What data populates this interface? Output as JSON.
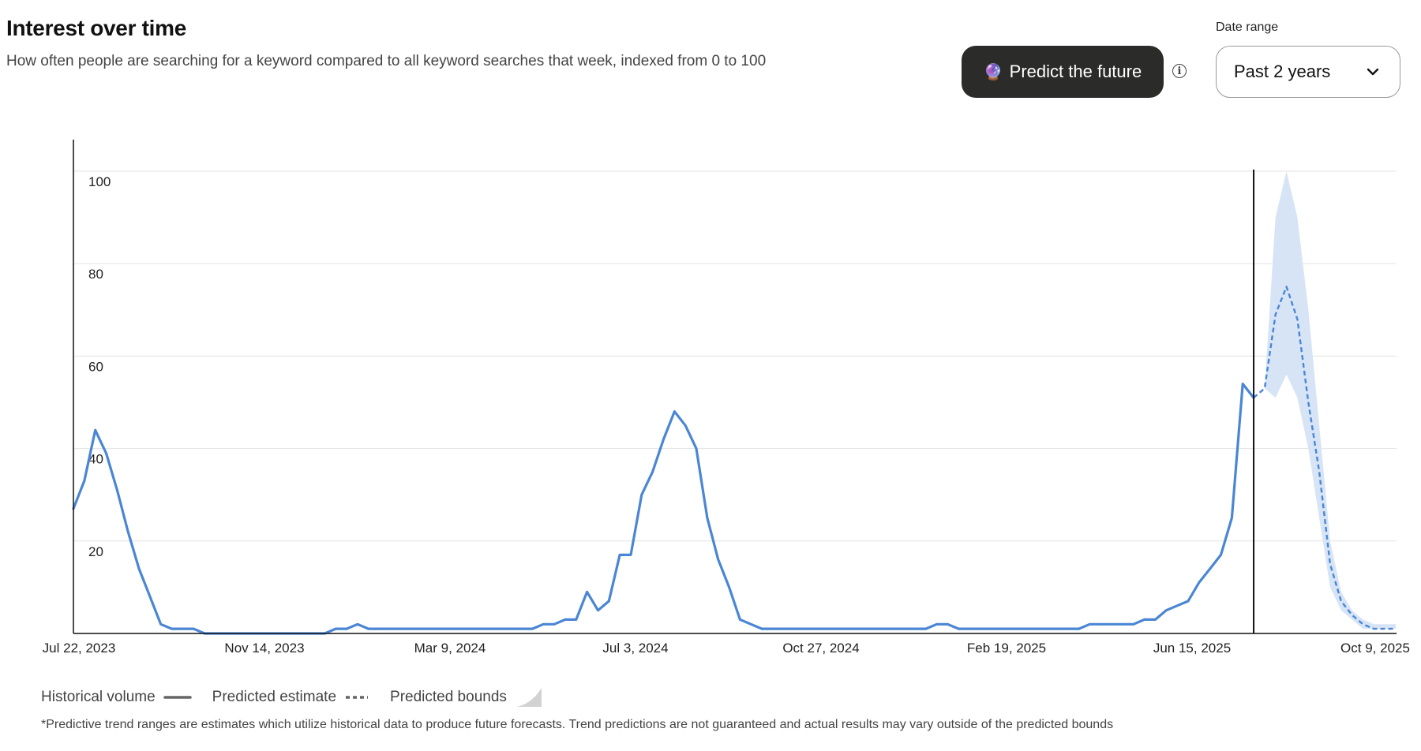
{
  "header": {
    "title": "Interest over time",
    "subtitle": "How often people are searching for a keyword compared to all keyword searches that week, indexed from 0 to 100"
  },
  "controls": {
    "predict_button_label": "Predict the future",
    "predict_icon": "crystal-ball-icon",
    "info_icon": "info-icon",
    "date_range_label": "Date range",
    "date_range_value": "Past 2 years",
    "dropdown_icon": "chevron-down-icon"
  },
  "legend": {
    "historical": "Historical volume",
    "estimate": "Predicted estimate",
    "bounds": "Predicted bounds"
  },
  "footnote": "*Predictive trend ranges are estimates which utilize historical data to produce future forecasts. Trend predictions are not guaranteed and actual results may vary outside of the predicted bounds",
  "colors": {
    "historical_line": "#4a86d4",
    "predicted_line": "#4a86d4",
    "bounds_fill": "#d6e4f6",
    "grid": "#e3e3e3",
    "axis": "#111111",
    "button_bg": "#2b2b29"
  },
  "chart_data": {
    "type": "line",
    "x_start": "Jul 22, 2023",
    "x_end": "Oct 9, 2025",
    "x_tick_labels": [
      "Jul 22, 2023",
      "Nov 14, 2023",
      "Mar 9, 2024",
      "Jul 3, 2024",
      "Oct 27, 2024",
      "Feb 19, 2025",
      "Jun 15, 2025",
      "Oct 9, 2025"
    ],
    "y_ticks": [
      20,
      40,
      60,
      80,
      100
    ],
    "ylim": [
      0,
      107
    ],
    "grid": true,
    "series": [
      {
        "style": "solid",
        "values": [
          27,
          33,
          44,
          39,
          31,
          22,
          14,
          8,
          2,
          1,
          1,
          1,
          0,
          0,
          0,
          0,
          0,
          0,
          0,
          0,
          0,
          0,
          0,
          0,
          1,
          1,
          2,
          1,
          1,
          1,
          1,
          1,
          1,
          1,
          1,
          1,
          1,
          1,
          1,
          1,
          1,
          1,
          1,
          2,
          2,
          3,
          3,
          9,
          5,
          7,
          17,
          17,
          30,
          35,
          42,
          48,
          45,
          40,
          25,
          16,
          10,
          3,
          2,
          1,
          1,
          1,
          1,
          1,
          1,
          1,
          1,
          1,
          1,
          1,
          1,
          1,
          1,
          1,
          1,
          2,
          2,
          1,
          1,
          1,
          1,
          1,
          1,
          1,
          1,
          1,
          1,
          1,
          1,
          2,
          2,
          2,
          2,
          2,
          3,
          3,
          5,
          6,
          7,
          11,
          14,
          17,
          25,
          54,
          51
        ]
      },
      {
        "style": "dashed",
        "values": [
          51,
          53,
          69,
          75,
          68,
          50,
          35,
          15,
          7,
          4,
          2,
          1,
          1,
          1
        ]
      }
    ],
    "bounds": {
      "upper": [
        51,
        53,
        90,
        100,
        90,
        70,
        45,
        20,
        9,
        5,
        3,
        2,
        2,
        2
      ],
      "lower": [
        51,
        53,
        51,
        56,
        51,
        40,
        25,
        10,
        5,
        3,
        1,
        1,
        1,
        1
      ]
    }
  }
}
